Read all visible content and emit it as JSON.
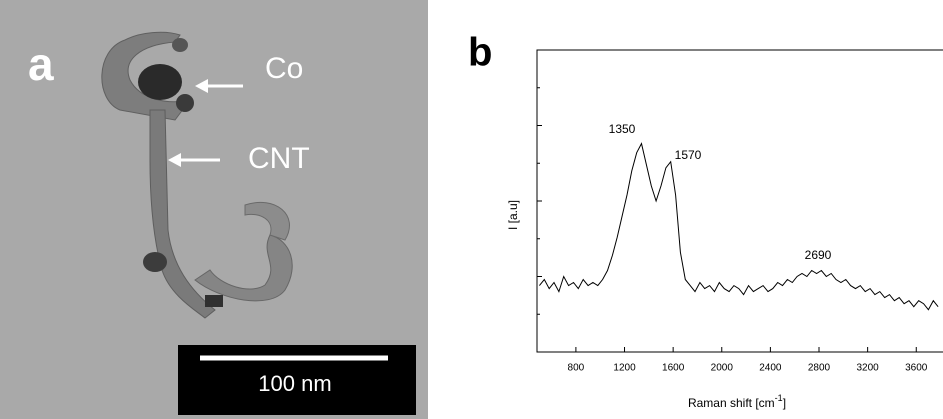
{
  "panel_a": {
    "label": "a",
    "co_label": "Co",
    "cnt_label": "CNT",
    "scale_bar": "100 nm"
  },
  "chart_data": {
    "type": "line",
    "panel_label": "b",
    "x_label": [
      "Raman shift [cm",
      "-1",
      "]"
    ],
    "y_label": "I [a.u]",
    "annotations": [
      "1350",
      "1570",
      "2690"
    ],
    "xlim": [
      480,
      3820
    ],
    "ylim": [
      0,
      100
    ],
    "xticks": [
      800,
      1200,
      1600,
      2000,
      2400,
      2800,
      3200,
      3600
    ],
    "x": [
      500,
      540,
      580,
      620,
      660,
      700,
      740,
      780,
      820,
      860,
      900,
      940,
      980,
      1020,
      1060,
      1100,
      1140,
      1180,
      1220,
      1260,
      1300,
      1340,
      1380,
      1420,
      1460,
      1500,
      1540,
      1580,
      1620,
      1660,
      1700,
      1740,
      1780,
      1820,
      1860,
      1900,
      1940,
      1980,
      2020,
      2060,
      2100,
      2140,
      2180,
      2220,
      2260,
      2300,
      2340,
      2380,
      2420,
      2460,
      2500,
      2540,
      2580,
      2620,
      2660,
      2700,
      2740,
      2780,
      2820,
      2860,
      2900,
      2940,
      2980,
      3020,
      3060,
      3100,
      3140,
      3180,
      3220,
      3260,
      3300,
      3340,
      3380,
      3420,
      3460,
      3500,
      3540,
      3580,
      3620,
      3660,
      3700,
      3740,
      3780
    ],
    "series": [
      {
        "color": "#000000",
        "values": [
          22,
          24,
          21,
          23,
          20,
          25,
          22,
          23,
          21,
          24,
          22,
          23,
          22,
          24,
          27,
          32,
          38,
          45,
          52,
          60,
          66,
          69,
          62,
          55,
          50,
          55,
          61,
          63,
          52,
          33,
          24,
          22,
          20,
          23,
          21,
          22,
          20,
          23,
          21,
          20,
          22,
          21,
          19,
          22,
          20,
          21,
          22,
          20,
          21,
          23,
          22,
          24,
          23,
          25,
          26,
          25,
          27,
          26,
          27,
          25,
          26,
          24,
          23,
          24,
          22,
          21,
          22,
          20,
          21,
          19,
          20,
          18,
          19,
          17,
          18,
          16,
          17,
          15,
          17,
          16,
          14,
          17,
          15
        ]
      }
    ]
  }
}
